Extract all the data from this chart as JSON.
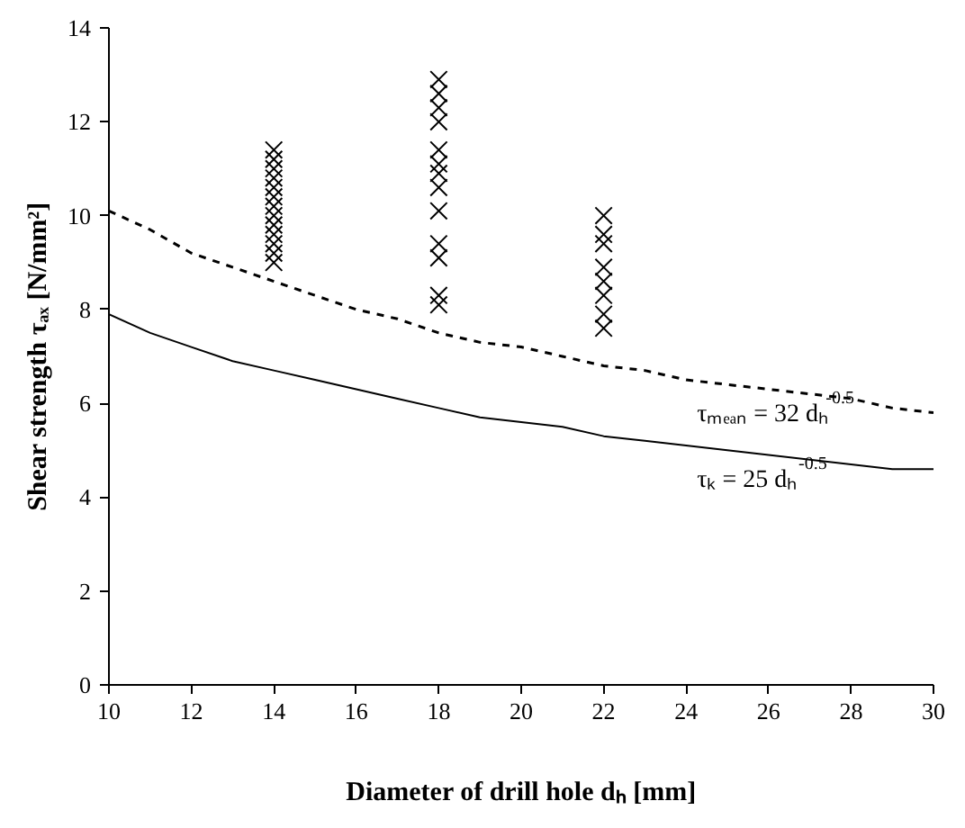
{
  "chart_data": {
    "type": "scatter",
    "xlabel": "Diameter of drill hole dₕ [mm]",
    "ylabel": "Shear strength τₐₓ [N/mm²]",
    "xlim": [
      10,
      30
    ],
    "xticks": [
      10,
      12,
      14,
      16,
      18,
      20,
      22,
      24,
      26,
      28,
      30
    ],
    "ylim": [
      0,
      14
    ],
    "yticks": [
      0,
      2,
      4,
      6,
      8,
      10,
      12,
      14
    ],
    "grid": false,
    "series": [
      {
        "marker": "cross",
        "color": "#000000",
        "x": [
          14,
          14,
          14,
          14,
          14,
          14,
          14,
          14,
          14,
          14,
          14,
          14,
          14,
          18,
          18,
          18,
          18,
          18,
          18,
          18,
          18,
          18,
          18,
          18,
          18,
          18,
          22,
          22,
          22,
          22,
          22,
          22,
          22,
          22
        ],
        "values": [
          9.0,
          9.2,
          9.4,
          9.6,
          9.8,
          10.0,
          10.2,
          10.4,
          10.6,
          10.8,
          11.0,
          11.2,
          11.4,
          8.1,
          8.3,
          9.1,
          9.4,
          10.1,
          10.6,
          10.9,
          11.1,
          11.4,
          12.0,
          12.3,
          12.6,
          12.9,
          7.6,
          7.9,
          8.3,
          8.6,
          8.9,
          9.4,
          9.6,
          10.0
        ]
      },
      {
        "type": "line",
        "color": "#000000",
        "line_style": "dashed",
        "x": [
          10,
          11,
          12,
          13,
          14,
          15,
          16,
          17,
          18,
          19,
          20,
          21,
          22,
          23,
          24,
          25,
          26,
          27,
          28,
          29,
          30
        ],
        "values": [
          10.1,
          9.7,
          9.2,
          8.9,
          8.6,
          8.3,
          8.0,
          7.8,
          7.5,
          7.3,
          7.2,
          7.0,
          6.8,
          6.7,
          6.5,
          6.4,
          6.3,
          6.2,
          6.1,
          5.9,
          5.8
        ]
      },
      {
        "type": "line",
        "color": "#000000",
        "line_style": "solid",
        "x": [
          10,
          11,
          12,
          13,
          14,
          15,
          16,
          17,
          18,
          19,
          20,
          21,
          22,
          23,
          24,
          25,
          26,
          27,
          28,
          29,
          30
        ],
        "values": [
          7.9,
          7.5,
          7.2,
          6.9,
          6.7,
          6.5,
          6.3,
          6.1,
          5.9,
          5.7,
          5.6,
          5.5,
          5.3,
          5.2,
          5.1,
          5.0,
          4.9,
          4.8,
          4.7,
          4.6,
          4.6
        ]
      }
    ],
    "annotations": [
      "τₘₑₐₙ = 32 dₕ$^{-0.5}$",
      "τₖ = 25 dₕ$^{-0.5}$"
    ]
  }
}
